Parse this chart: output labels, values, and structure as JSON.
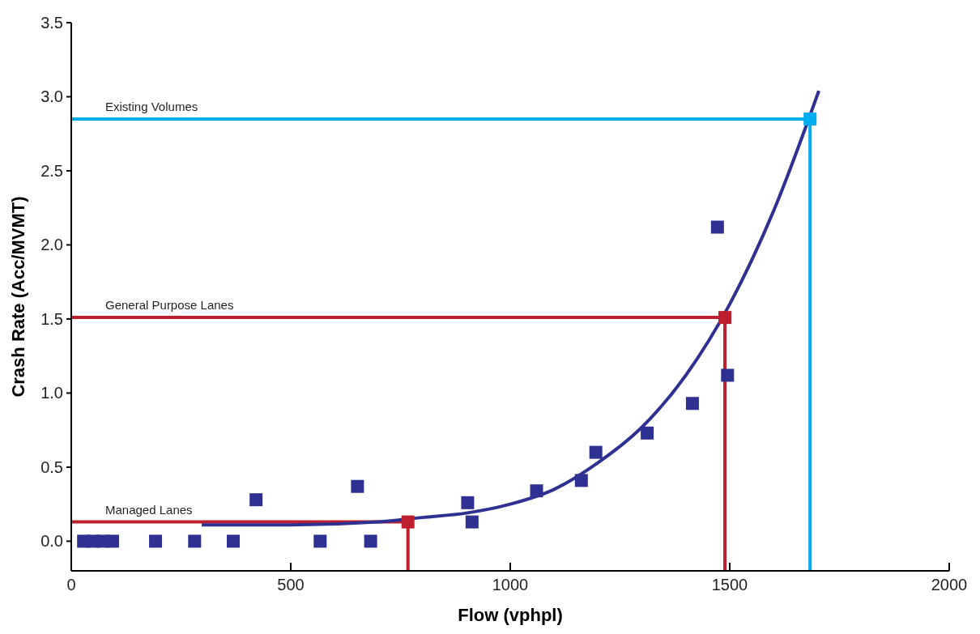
{
  "chart_data": {
    "type": "scatter",
    "xlabel": "Flow (vphpl)",
    "ylabel": "Crash Rate (Acc/MVMT)",
    "xlim": [
      0,
      2000
    ],
    "xticks": [
      0,
      500,
      1000,
      1500,
      2000
    ],
    "ylim": [
      -0.2,
      3.5
    ],
    "yticks": [
      {
        "value": 0,
        "label": "0.0"
      },
      {
        "value": 0.5,
        "label": "0.5"
      },
      {
        "value": 1,
        "label": "1.0"
      },
      {
        "value": 1.5,
        "label": "1.5"
      },
      {
        "value": 2,
        "label": "2.0"
      },
      {
        "value": 2.5,
        "label": "2.5"
      },
      {
        "value": 3,
        "label": "3.0"
      },
      {
        "value": 3.5,
        "label": "3.5"
      }
    ],
    "grid": false,
    "marker": "square",
    "series": [
      {
        "color": "#2e3192",
        "x": [
          28,
          50,
          72,
          94,
          192,
          281,
          369,
          421,
          567,
          652,
          682,
          903,
          913,
          1060,
          1162,
          1195,
          1312,
          1415,
          1472,
          1495
        ],
        "values": [
          0,
          0,
          0,
          0,
          0,
          0,
          0,
          0.28,
          0,
          0.37,
          0,
          0.26,
          0.13,
          0.34,
          0.41,
          0.6,
          0.73,
          0.93,
          2.12,
          1.12
        ]
      },
      {
        "type": "line",
        "color": "#2e3192",
        "marker": "none",
        "x": [
          297,
          500,
          700,
          800,
          900,
          1000,
          1100,
          1200,
          1300,
          1400,
          1500,
          1600,
          1703
        ],
        "values": [
          0.11,
          0.11,
          0.13,
          0.16,
          0.19,
          0.25,
          0.35,
          0.53,
          0.77,
          1.12,
          1.6,
          2.23,
          3.04
        ]
      },
      {
        "type": "line",
        "name": "Existing Volumes",
        "color": "#00aeef",
        "marker": "none",
        "x": [
          0,
          1683,
          1683
        ],
        "values": [
          2.85,
          2.85,
          -0.2
        ]
      },
      {
        "type": "line",
        "name": "General Purpose Lanes",
        "color": "#be1e2d",
        "marker": "none",
        "x": [
          0,
          1489,
          1489
        ],
        "values": [
          1.51,
          1.51,
          -0.2
        ]
      },
      {
        "type": "line",
        "name": "Managed Lanes",
        "color": "#be1e2d",
        "marker": "none",
        "x": [
          0,
          767,
          767
        ],
        "values": [
          0.13,
          0.13,
          -0.2
        ]
      },
      {
        "colors": [
          "#00aeef",
          "#be1e2d",
          "#be1e2d"
        ],
        "x": [
          1683,
          1489,
          767
        ],
        "values": [
          2.85,
          1.51,
          0.13
        ]
      }
    ]
  }
}
